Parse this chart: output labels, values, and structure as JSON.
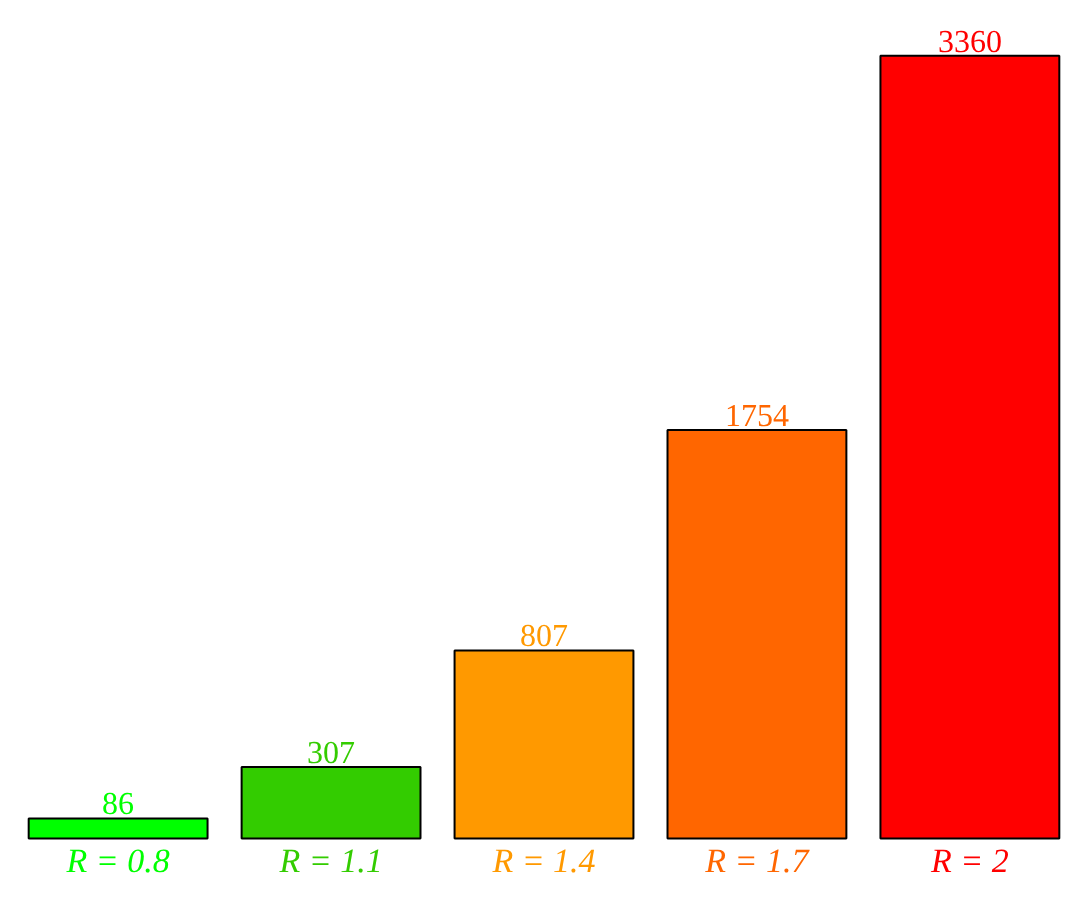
{
  "chart_data": {
    "type": "bar",
    "categories": [
      "R = 0.8",
      "R = 1.1",
      "R = 1.4",
      "R = 1.7",
      "R = 2"
    ],
    "values": [
      86,
      307,
      807,
      1754,
      3360
    ],
    "colors": [
      "#00ff00",
      "#33cc00",
      "#ff9900",
      "#ff6600",
      "#ff0000"
    ],
    "data_labels": true
  }
}
